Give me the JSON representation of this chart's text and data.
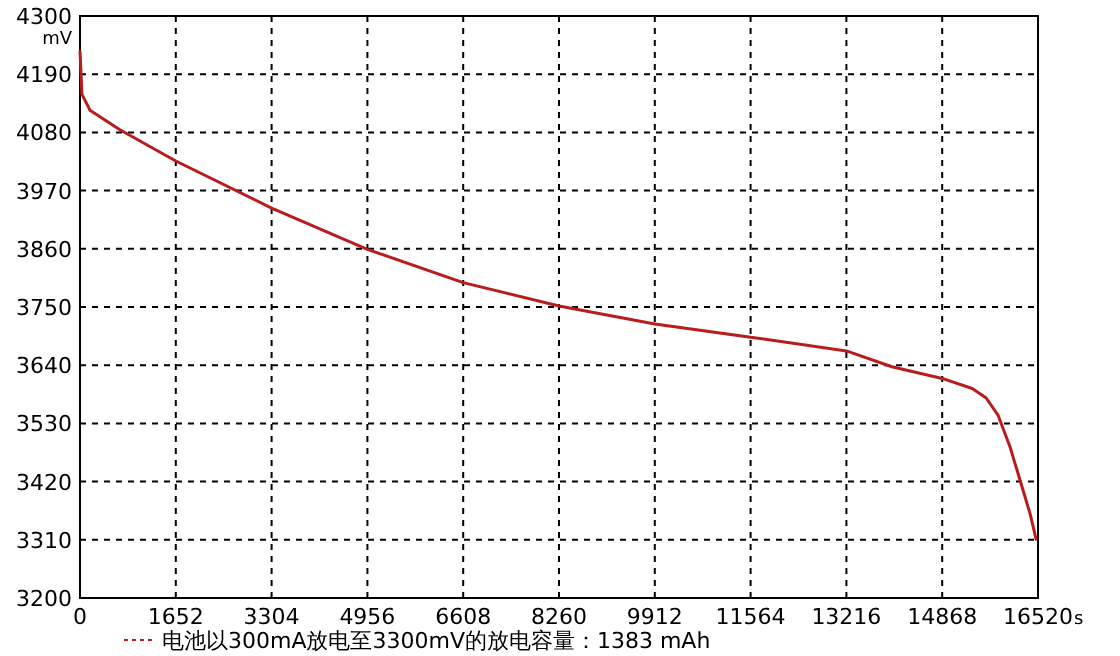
{
  "chart_data": {
    "type": "line",
    "xlabel": "s",
    "ylabel": "mV",
    "xlim": [
      0,
      16520
    ],
    "ylim": [
      3200,
      4300
    ],
    "xticks": [
      0,
      1652,
      3304,
      4956,
      6608,
      8260,
      9912,
      11564,
      13216,
      14868,
      16520
    ],
    "yticks": [
      3200,
      3310,
      3420,
      3530,
      3640,
      3750,
      3860,
      3970,
      4080,
      4190,
      4300
    ],
    "grid": true,
    "legend": "bottom",
    "marker": "none",
    "series": [
      {
        "name": "电池以300mA放电至3300mV的放电容量：1383 mAh",
        "color": "#b81c1c",
        "line_style": "solid",
        "x": [
          0,
          34,
          172,
          688,
          1652,
          3304,
          4956,
          6608,
          8260,
          9912,
          11564,
          13216,
          14000,
          14868,
          15386,
          15627,
          15833,
          16040,
          16212,
          16384,
          16487
        ],
        "values": [
          4233,
          4152,
          4122,
          4085,
          4026,
          3937,
          3859,
          3796,
          3752,
          3718,
          3693,
          3667,
          3637,
          3615,
          3596,
          3578,
          3545,
          3485,
          3422,
          3359,
          3311
        ]
      }
    ]
  }
}
